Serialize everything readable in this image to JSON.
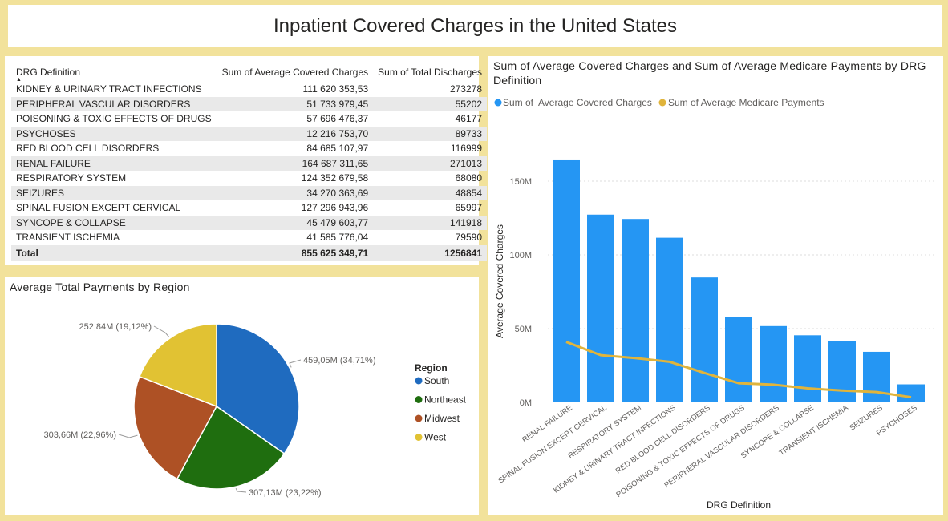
{
  "title": "Inpatient Covered Charges in the United States",
  "table": {
    "headers": [
      "DRG Definition",
      "Sum of Average Covered Charges",
      "Sum of Total Discharges"
    ],
    "rows": [
      [
        "KIDNEY & URINARY TRACT INFECTIONS",
        "111 620 353,53",
        "273278"
      ],
      [
        "PERIPHERAL VASCULAR DISORDERS",
        "51 733 979,45",
        "55202"
      ],
      [
        "POISONING & TOXIC EFFECTS OF DRUGS",
        "57 696 476,37",
        "46177"
      ],
      [
        "PSYCHOSES",
        "12 216 753,70",
        "89733"
      ],
      [
        "RED BLOOD CELL DISORDERS",
        "84 685 107,97",
        "116999"
      ],
      [
        "RENAL FAILURE",
        "164 687 311,65",
        "271013"
      ],
      [
        "RESPIRATORY SYSTEM",
        "124 352 679,58",
        "68080"
      ],
      [
        "SEIZURES",
        "34 270 363,69",
        "48854"
      ],
      [
        "SPINAL FUSION EXCEPT CERVICAL",
        "127 296 943,96",
        "65997"
      ],
      [
        "SYNCOPE & COLLAPSE",
        "45 479 603,77",
        "141918"
      ],
      [
        "TRANSIENT ISCHEMIA",
        "41 585 776,04",
        "79590"
      ]
    ],
    "total": [
      "Total",
      "855 625 349,71",
      "1256841"
    ],
    "sort_icon": "sort-ascending-icon",
    "divider_color": "#2e9fb0"
  },
  "chart_data": [
    {
      "type": "pie",
      "title": "Average Total Payments by Region",
      "legend_title": "Region",
      "legend_position": "right",
      "slices": [
        {
          "name": "South",
          "value": 459.05,
          "label": "459,05M (34,71%)",
          "color": "#1f6bbf"
        },
        {
          "name": "Northeast",
          "value": 307.13,
          "label": "307,13M (23,22%)",
          "color": "#1f6e0f"
        },
        {
          "name": "Midwest",
          "value": 303.66,
          "label": "303,66M (22,96%)",
          "color": "#ae5125"
        },
        {
          "name": "West",
          "value": 252.84,
          "label": "252,84M (19,12%)",
          "color": "#e1c233"
        }
      ]
    },
    {
      "type": "bar",
      "title": "Sum of Average Covered Charges and Sum of Average Medicare Payments by DRG Definition",
      "xlabel": "DRG Definition",
      "ylabel": "Average Covered Charges",
      "ylim": [
        0,
        175
      ],
      "yticks": [
        "0M",
        "50M",
        "100M",
        "150M"
      ],
      "grid": true,
      "legend_position": "top-left",
      "categories": [
        "RENAL FAILURE",
        "SPINAL FUSION EXCEPT CERVICAL",
        "RESPIRATORY SYSTEM",
        "KIDNEY & URINARY TRACT INFECTIONS",
        "RED BLOOD CELL DISORDERS",
        "POISONING & TOXIC EFFECTS OF DRUGS",
        "PERIPHERAL VASCULAR DISORDERS",
        "SYNCOPE & COLLAPSE",
        "TRANSIENT ISCHEMIA",
        "SEIZURES",
        "PSYCHOSES"
      ],
      "series": [
        {
          "name": "Sum of  Average Covered Charges",
          "kind": "bar",
          "color": "#2596f3",
          "values": [
            164.69,
            127.3,
            124.35,
            111.62,
            84.69,
            57.7,
            51.73,
            45.48,
            41.59,
            34.27,
            12.22
          ]
        },
        {
          "name": "Sum of Average Medicare Payments",
          "kind": "line",
          "color": "#e0b43c",
          "values": [
            41,
            32,
            30,
            27.5,
            20,
            13,
            12,
            9.5,
            8,
            7,
            3.5
          ]
        }
      ]
    }
  ]
}
